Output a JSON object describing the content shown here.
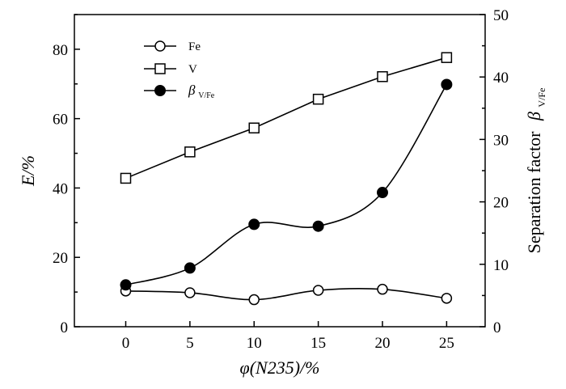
{
  "chart_data": {
    "type": "line",
    "x": [
      0,
      5,
      10,
      15,
      20,
      25
    ],
    "x_ticks": [
      "0",
      "5",
      "10",
      "15",
      "20",
      "25"
    ],
    "xlim": [
      -4,
      28
    ],
    "xlabel": "φ(N235)/%",
    "ylabel_left": "E/%",
    "ylim_left": [
      0,
      90
    ],
    "y_ticks_left": [
      "0",
      "20",
      "40",
      "60",
      "80"
    ],
    "ylabel_right": "Separation factor",
    "ylabel_right_symbol": "β",
    "ylabel_right_subscript": "V/Fe",
    "ylim_right": [
      0,
      50
    ],
    "y_ticks_right": [
      "0",
      "10",
      "20",
      "30",
      "40",
      "50"
    ],
    "grid": false,
    "legend_position": "top-left",
    "series": [
      {
        "name": "Fe",
        "axis": "left",
        "marker": "circle-open",
        "smooth": true,
        "values": [
          10.3,
          9.8,
          7.8,
          10.5,
          10.8,
          8.2
        ]
      },
      {
        "name": "V",
        "axis": "left",
        "marker": "square-open",
        "smooth": false,
        "values": [
          42.8,
          50.4,
          57.3,
          65.6,
          72.1,
          77.6
        ]
      },
      {
        "name": "β",
        "name_subscript": "V/Fe",
        "axis": "right",
        "marker": "circle-filled",
        "smooth": true,
        "values": [
          6.7,
          9.4,
          16.4,
          16.1,
          21.5,
          38.8
        ]
      }
    ]
  }
}
